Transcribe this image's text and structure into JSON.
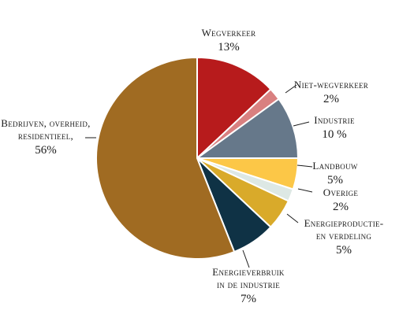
{
  "chart_data": {
    "type": "pie",
    "title": "",
    "start_angle_deg": 0,
    "direction": "clockwise",
    "slices": [
      {
        "label_lines": [
          "Wegverkeer"
        ],
        "value": 13,
        "value_text": "13%",
        "color": "#b71b1c"
      },
      {
        "label_lines": [
          "Niet-wegverkeer"
        ],
        "value": 2,
        "value_text": "2%",
        "color": "#d98080"
      },
      {
        "label_lines": [
          "Industrie"
        ],
        "value": 10,
        "value_text": "10 %",
        "color": "#66788a"
      },
      {
        "label_lines": [
          "Landbouw"
        ],
        "value": 5,
        "value_text": "5%",
        "color": "#fcc747"
      },
      {
        "label_lines": [
          "Overige"
        ],
        "value": 2,
        "value_text": "2%",
        "color": "#dde8e4"
      },
      {
        "label_lines": [
          "Energieproductie-",
          "en verdeling"
        ],
        "value": 5,
        "value_text": "5%",
        "color": "#d9aa2a"
      },
      {
        "label_lines": [
          "Energieverbruik",
          "in de industrie"
        ],
        "value": 7,
        "value_text": "7%",
        "color": "#0f3245"
      },
      {
        "label_lines": [
          "Bedrijven, overheid,",
          "residentieel,"
        ],
        "value": 56,
        "value_text": "56%",
        "color": "#a06b22"
      }
    ]
  }
}
